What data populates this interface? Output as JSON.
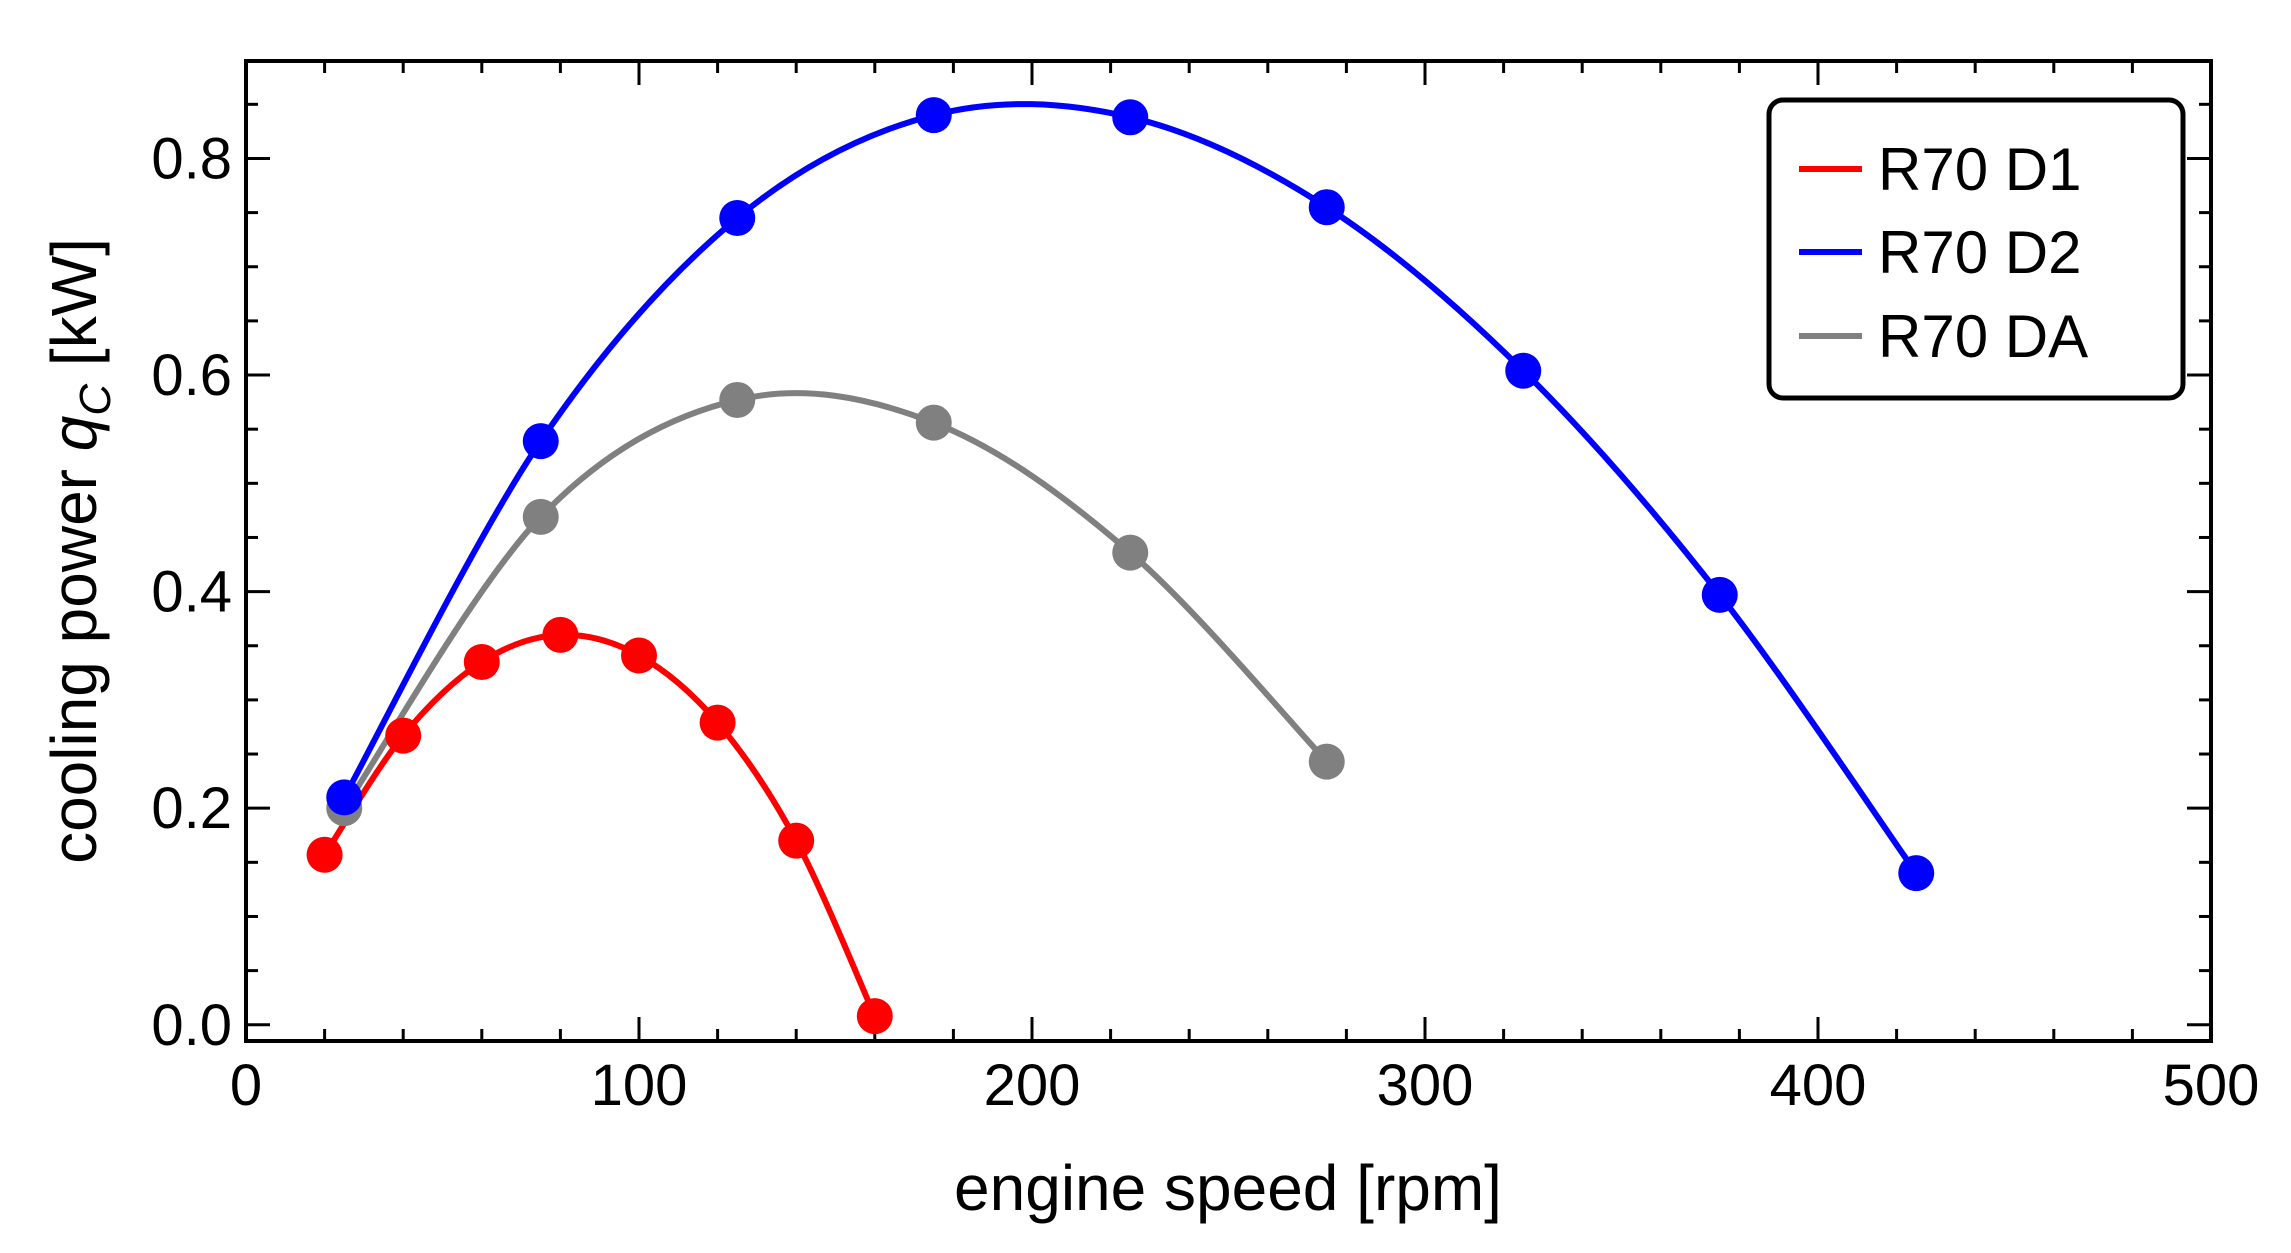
{
  "chart_data": {
    "type": "line",
    "title": "",
    "xlabel": "engine speed [rpm]",
    "ylabel_prefix": "cooling power ",
    "ylabel_symbol": "q",
    "ylabel_subscript": "C",
    "ylabel_suffix": " [kW]",
    "xlim": [
      0,
      500
    ],
    "ylim": [
      -0.015,
      0.89
    ],
    "x_ticks": [
      0,
      100,
      200,
      300,
      400,
      500
    ],
    "x_tick_labels": [
      "0",
      "100",
      "200",
      "300",
      "400",
      "500"
    ],
    "y_ticks": [
      0.0,
      0.2,
      0.4,
      0.6,
      0.8
    ],
    "y_tick_labels": [
      "0.0",
      "0.2",
      "0.4",
      "0.6",
      "0.8"
    ],
    "grid": false,
    "legend_position": "top-right",
    "series": [
      {
        "name": "R70 D1",
        "color": "#ff0000",
        "x": [
          20,
          40,
          60,
          80,
          100,
          120,
          140,
          160
        ],
        "y": [
          0.157,
          0.267,
          0.335,
          0.36,
          0.341,
          0.279,
          0.17,
          0.008
        ]
      },
      {
        "name": "R70 D2",
        "color": "#0000ff",
        "x": [
          25,
          75,
          125,
          175,
          225,
          275,
          325,
          375,
          425
        ],
        "y": [
          0.21,
          0.539,
          0.745,
          0.84,
          0.838,
          0.755,
          0.604,
          0.397,
          0.14
        ]
      },
      {
        "name": "R70 DA",
        "color": "#808080",
        "x": [
          25,
          75,
          125,
          175,
          225,
          275
        ],
        "y": [
          0.2,
          0.469,
          0.577,
          0.556,
          0.436,
          0.243
        ]
      }
    ]
  }
}
